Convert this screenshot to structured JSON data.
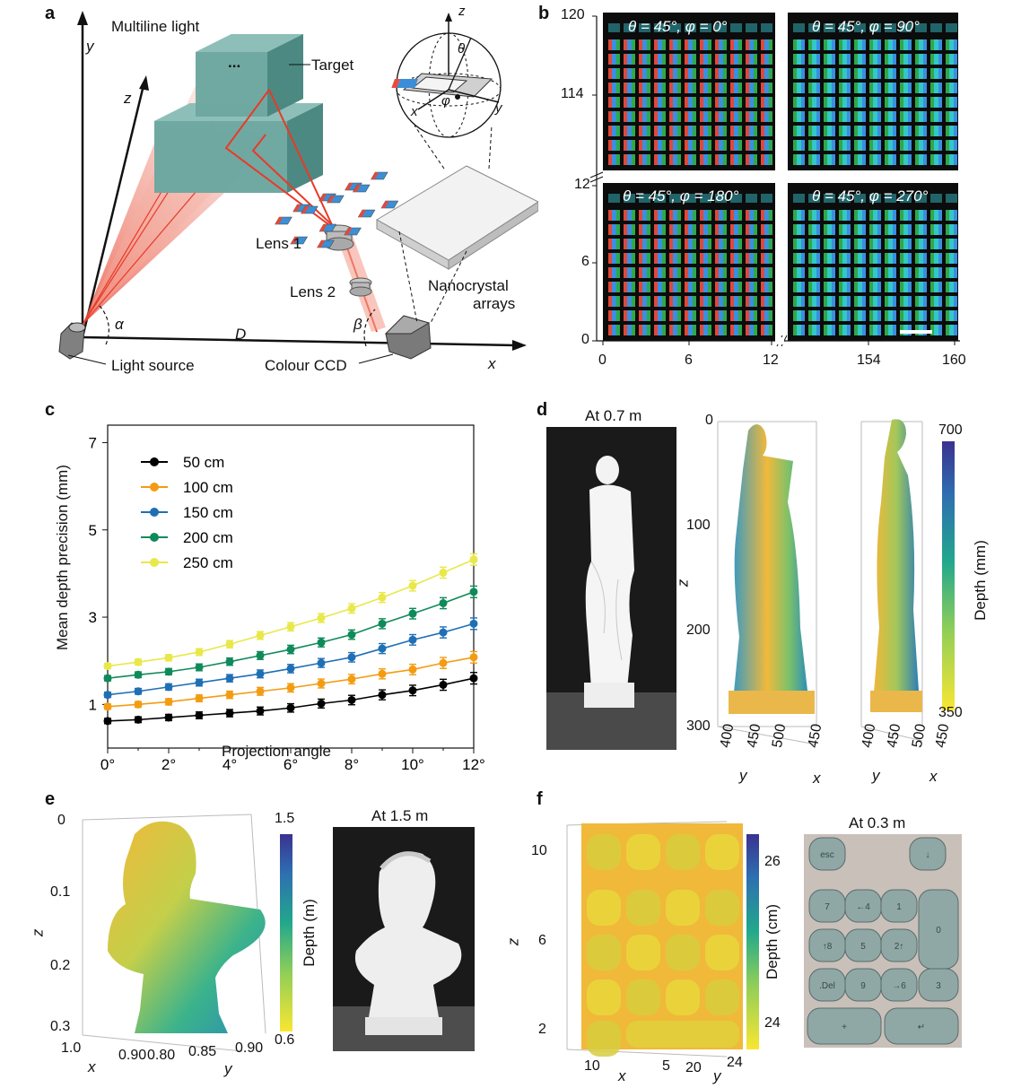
{
  "panels": {
    "a": "a",
    "b": "b",
    "c": "c",
    "d": "d",
    "e": "e",
    "f": "f"
  },
  "panel_a": {
    "multiline_light": "Multiline light",
    "target": "Target",
    "lens1": "Lens 1",
    "lens2": "Lens 2",
    "nanocrystal_line1": "Nanocrystal",
    "nanocrystal_line2": "arrays",
    "light_source": "Light source",
    "colour_ccd": "Colour CCD",
    "axis_x": "x",
    "axis_y": "y",
    "axis_z": "z",
    "alpha": "α",
    "beta": "β",
    "D": "D",
    "sphere_z": "z",
    "sphere_x": "x",
    "sphere_y": "y",
    "theta": "θ",
    "phi": "φ",
    "dots": "..."
  },
  "panel_b": {
    "titles": [
      "θ = 45°, φ = 0°",
      "θ = 45°, φ = 90°",
      "θ = 45°, φ = 180°",
      "θ = 45°, φ = 270°"
    ],
    "y_ticks": [
      "120",
      "114",
      "12",
      "6",
      "0"
    ],
    "x_ticks": [
      "0",
      "6",
      "12",
      "154",
      "160"
    ]
  },
  "panel_c": {
    "chart_data": {
      "type": "line",
      "xlabel": "Projection angle",
      "ylabel": "Mean depth precision (mm)",
      "x": [
        0,
        1,
        2,
        3,
        4,
        5,
        6,
        7,
        8,
        9,
        10,
        11,
        12
      ],
      "x_tick_labels": [
        "0°",
        "2°",
        "4°",
        "6°",
        "8°",
        "10°",
        "12°"
      ],
      "x_tick_values": [
        0,
        2,
        4,
        6,
        8,
        10,
        12
      ],
      "y_ticks": [
        1,
        3,
        5,
        7
      ],
      "xlim": [
        0,
        12
      ],
      "ylim": [
        0,
        7.4
      ],
      "legend_placement": "top-left",
      "series": [
        {
          "name": "50 cm",
          "color": "#000000",
          "values": [
            0.62,
            0.65,
            0.7,
            0.75,
            0.8,
            0.85,
            0.92,
            1.02,
            1.1,
            1.22,
            1.32,
            1.45,
            1.6
          ]
        },
        {
          "name": "100 cm",
          "color": "#f39c12",
          "values": [
            0.95,
            1.0,
            1.06,
            1.14,
            1.22,
            1.3,
            1.38,
            1.48,
            1.58,
            1.7,
            1.8,
            1.95,
            2.08
          ]
        },
        {
          "name": "150 cm",
          "color": "#1f6fb5",
          "values": [
            1.22,
            1.3,
            1.4,
            1.5,
            1.6,
            1.7,
            1.82,
            1.95,
            2.08,
            2.28,
            2.48,
            2.65,
            2.85
          ]
        },
        {
          "name": "200 cm",
          "color": "#0f8a5a",
          "values": [
            1.6,
            1.68,
            1.75,
            1.85,
            1.98,
            2.12,
            2.26,
            2.42,
            2.6,
            2.85,
            3.08,
            3.32,
            3.58
          ]
        },
        {
          "name": "250 cm",
          "color": "#e8e84a",
          "values": [
            1.88,
            1.97,
            2.07,
            2.2,
            2.38,
            2.58,
            2.78,
            2.98,
            3.2,
            3.45,
            3.72,
            4.02,
            4.32
          ]
        }
      ]
    }
  },
  "panel_d": {
    "photo_label": "At 0.7 m",
    "z_ticks": [
      "0",
      "100",
      "200",
      "300"
    ],
    "z_label": "z",
    "front_x_ticks": [
      "400",
      "450",
      "500",
      "450"
    ],
    "front_y": "y",
    "front_x": "x",
    "side_x_ticks": [
      "400",
      "450",
      "500",
      "450"
    ],
    "side_y": "y",
    "side_x": "x",
    "colorbar_label": "Depth (mm)",
    "colorbar_max": "700",
    "colorbar_min": "350"
  },
  "panel_e": {
    "z_ticks": [
      "0",
      "0.1",
      "0.2",
      "0.3"
    ],
    "z_label": "z",
    "x_ticks": [
      "1.0",
      "0.90"
    ],
    "y_ticks": [
      "0.80",
      "0.85",
      "0.90"
    ],
    "x_label": "x",
    "y_label": "y",
    "colorbar_label": "Depth (m)",
    "colorbar_max": "1.5",
    "colorbar_min": "0.6",
    "photo_label": "At 1.5 m"
  },
  "panel_f": {
    "z_ticks": [
      "10",
      "6",
      "2"
    ],
    "z_label": "z",
    "x_ticks": [
      "10",
      "5"
    ],
    "y_ticks": [
      "20",
      "24"
    ],
    "x_label": "x",
    "y_label": "y",
    "colorbar_label": "Depth (cm)",
    "colorbar_max": "26",
    "colorbar_min": "24",
    "photo_label": "At 0.3 m",
    "keys": [
      "esc",
      "↓",
      "7",
      "←4",
      "1",
      "0",
      "↑8",
      "5",
      "2↑",
      ".Del",
      "9",
      "→6",
      "3",
      "+",
      "↵"
    ]
  }
}
